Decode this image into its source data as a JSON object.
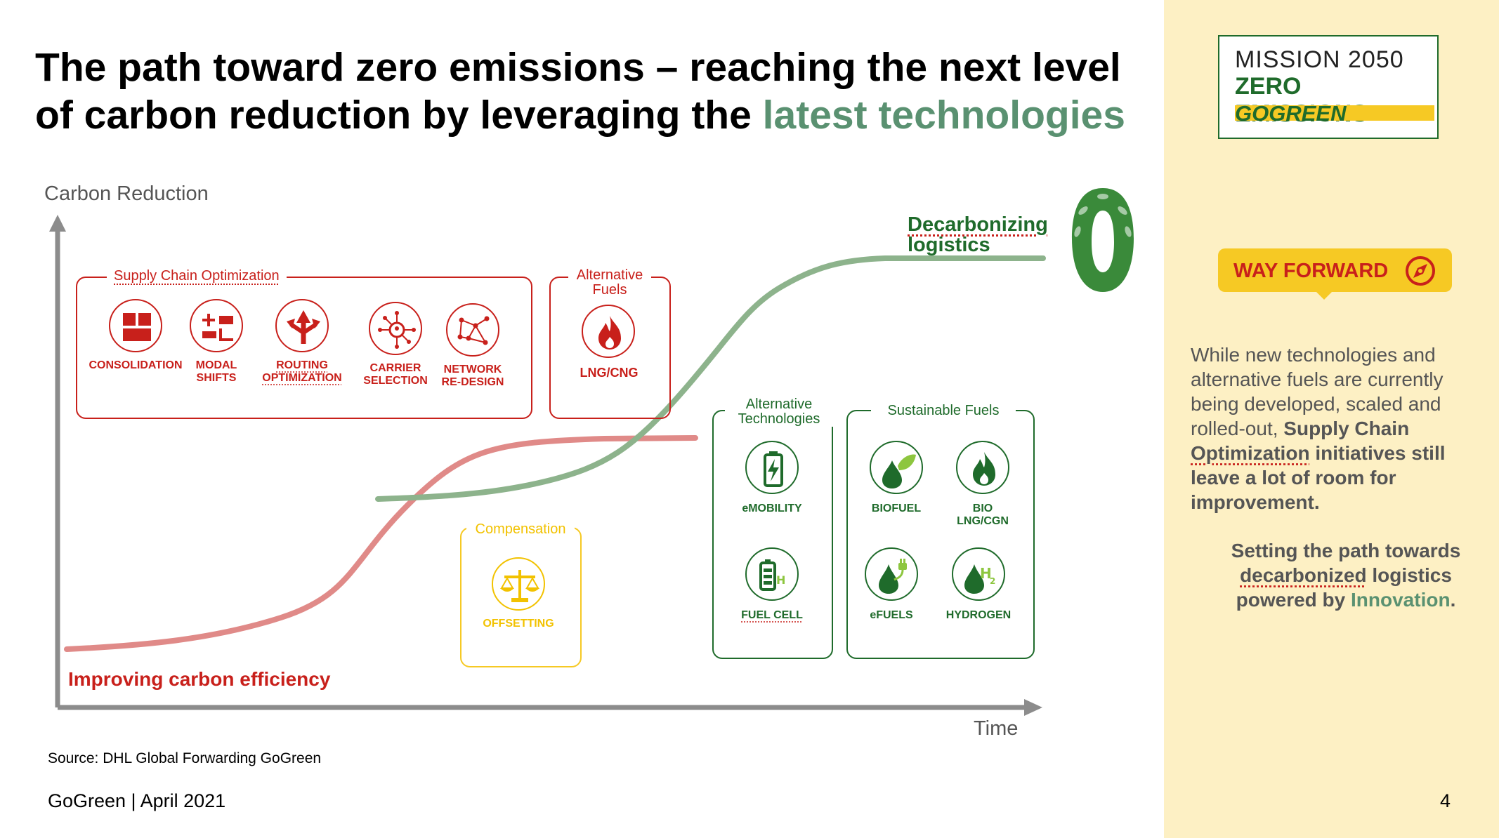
{
  "title": {
    "part1": "The path toward zero emissions – reaching the next level of carbon reduction by leveraging the ",
    "part2": "latest technologies"
  },
  "axes": {
    "y_label": "Carbon Reduction",
    "x_label": "Time"
  },
  "curves": {
    "red_label": "Improving carbon efficiency",
    "green_label_line1": "Decarbonizing",
    "green_label_line2": "logistics"
  },
  "groups": {
    "supply_chain": {
      "label": "Supply Chain Optimization",
      "items": [
        {
          "label": "CONSOLIDATION",
          "icon": "grid-blocks-icon"
        },
        {
          "label": "MODAL\nSHIFTS",
          "icon": "modal-transport-icon"
        },
        {
          "label": "ROUTING\nOPTIMIZATION",
          "icon": "routing-arrows-icon"
        },
        {
          "label": "CARRIER\nSELECTION",
          "icon": "carrier-network-icon"
        },
        {
          "label": "NETWORK\nRE-DESIGN",
          "icon": "network-nodes-icon"
        }
      ]
    },
    "alt_fuels": {
      "label": "Alternative\nFuels",
      "items": [
        {
          "label": "LNG/CNG",
          "icon": "flame-icon"
        }
      ]
    },
    "compensation": {
      "label": "Compensation",
      "items": [
        {
          "label": "OFFSETTING",
          "icon": "scales-icon"
        }
      ]
    },
    "alt_tech": {
      "label": "Alternative\nTechnologies",
      "items": [
        {
          "label": "eMOBILITY",
          "icon": "battery-bolt-icon"
        },
        {
          "label": "FUEL CELL",
          "icon": "fuel-cell-icon"
        }
      ]
    },
    "sustainable_fuels": {
      "label": "Sustainable Fuels",
      "items": [
        {
          "label": "BIOFUEL",
          "icon": "drop-leaf-icon"
        },
        {
          "label": "BIO\nLNG/CGN",
          "icon": "flame-drop-icon"
        },
        {
          "label": "eFUELS",
          "icon": "drop-plug-icon"
        },
        {
          "label": "HYDROGEN",
          "icon": "drop-h2-icon"
        }
      ]
    }
  },
  "source": "Source: DHL Global Forwarding GoGreen",
  "footer": {
    "left": "GoGreen | April 2021",
    "page": "4"
  },
  "logo": {
    "line1": "MISSION 2050",
    "line2": "ZERO EMISSIONS",
    "line3": "GOGREEN"
  },
  "way_forward": {
    "label": "WAY FORWARD",
    "icon": "compass-icon"
  },
  "right_text": {
    "p1_plain": "While new technologies and alternative fuels are currently being developed, scaled and rolled-out, ",
    "p1_bold1": "Supply Chain",
    "p1_bold2": "Optimization",
    "p1_bold3": " initiatives still leave a lot of room for improvement.",
    "p2_line1": "Setting the path towards",
    "p2_dec": "decarbonized",
    "p2_line2": " logistics",
    "p2_line3a": "powered by ",
    "p2_innov": "Innovation",
    "p2_end": "."
  },
  "colors": {
    "red": "#c8201b",
    "green": "#1f6b2b",
    "yellow": "#f2c200",
    "curve_red": "#e08a88",
    "curve_green": "#8db38c",
    "panel": "#fdf0c4"
  }
}
